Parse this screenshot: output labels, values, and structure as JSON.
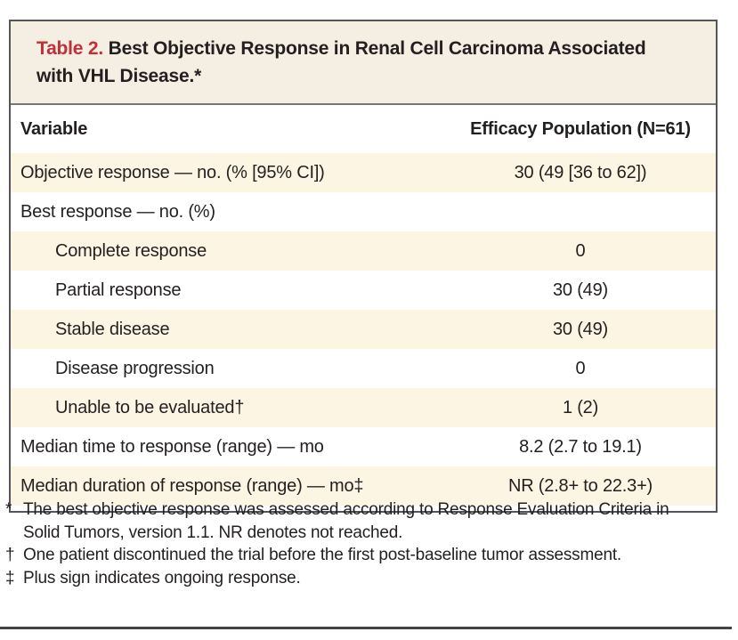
{
  "title": {
    "label": "Table 2.",
    "text": " Best Objective Response in Renal Cell Carcinoma Associated with VHL Disease.*"
  },
  "columns": {
    "variable": "Variable",
    "value": "Efficacy Population (N=61)"
  },
  "rows": [
    {
      "variable": "Objective response — no. (% [95% CI])",
      "value": "30 (49 [36 to 62])"
    },
    {
      "variable": "Best response — no. (%)",
      "value": ""
    },
    {
      "variable": "Complete response",
      "value": "0"
    },
    {
      "variable": "Partial response",
      "value": "30 (49)"
    },
    {
      "variable": "Stable disease",
      "value": "30 (49)"
    },
    {
      "variable": "Disease progression",
      "value": "0"
    },
    {
      "variable": "Unable to be evaluated†",
      "value": "1 (2)"
    },
    {
      "variable": "Median time to response (range) — mo",
      "value": "8.2 (2.7 to 19.1)"
    },
    {
      "variable": "Median duration of response (range) — mo‡",
      "value": "NR (2.8+ to 22.3+)"
    }
  ],
  "footnotes": [
    {
      "marker": "*",
      "text": "The best objective response was assessed according to Response Evaluation Criteria in Solid Tumors, version 1.1. NR denotes not reached."
    },
    {
      "marker": "†",
      "text": "One patient discontinued the trial before the first post-baseline tumor assessment."
    },
    {
      "marker": "‡",
      "text": "Plus sign indicates ongoing response."
    }
  ],
  "colors": {
    "accent_red": "#bf3038",
    "title_background": "#f4efe2",
    "stripe_background": "#fcf5e4",
    "border_gray": "#55565a",
    "text": "#231f20"
  }
}
